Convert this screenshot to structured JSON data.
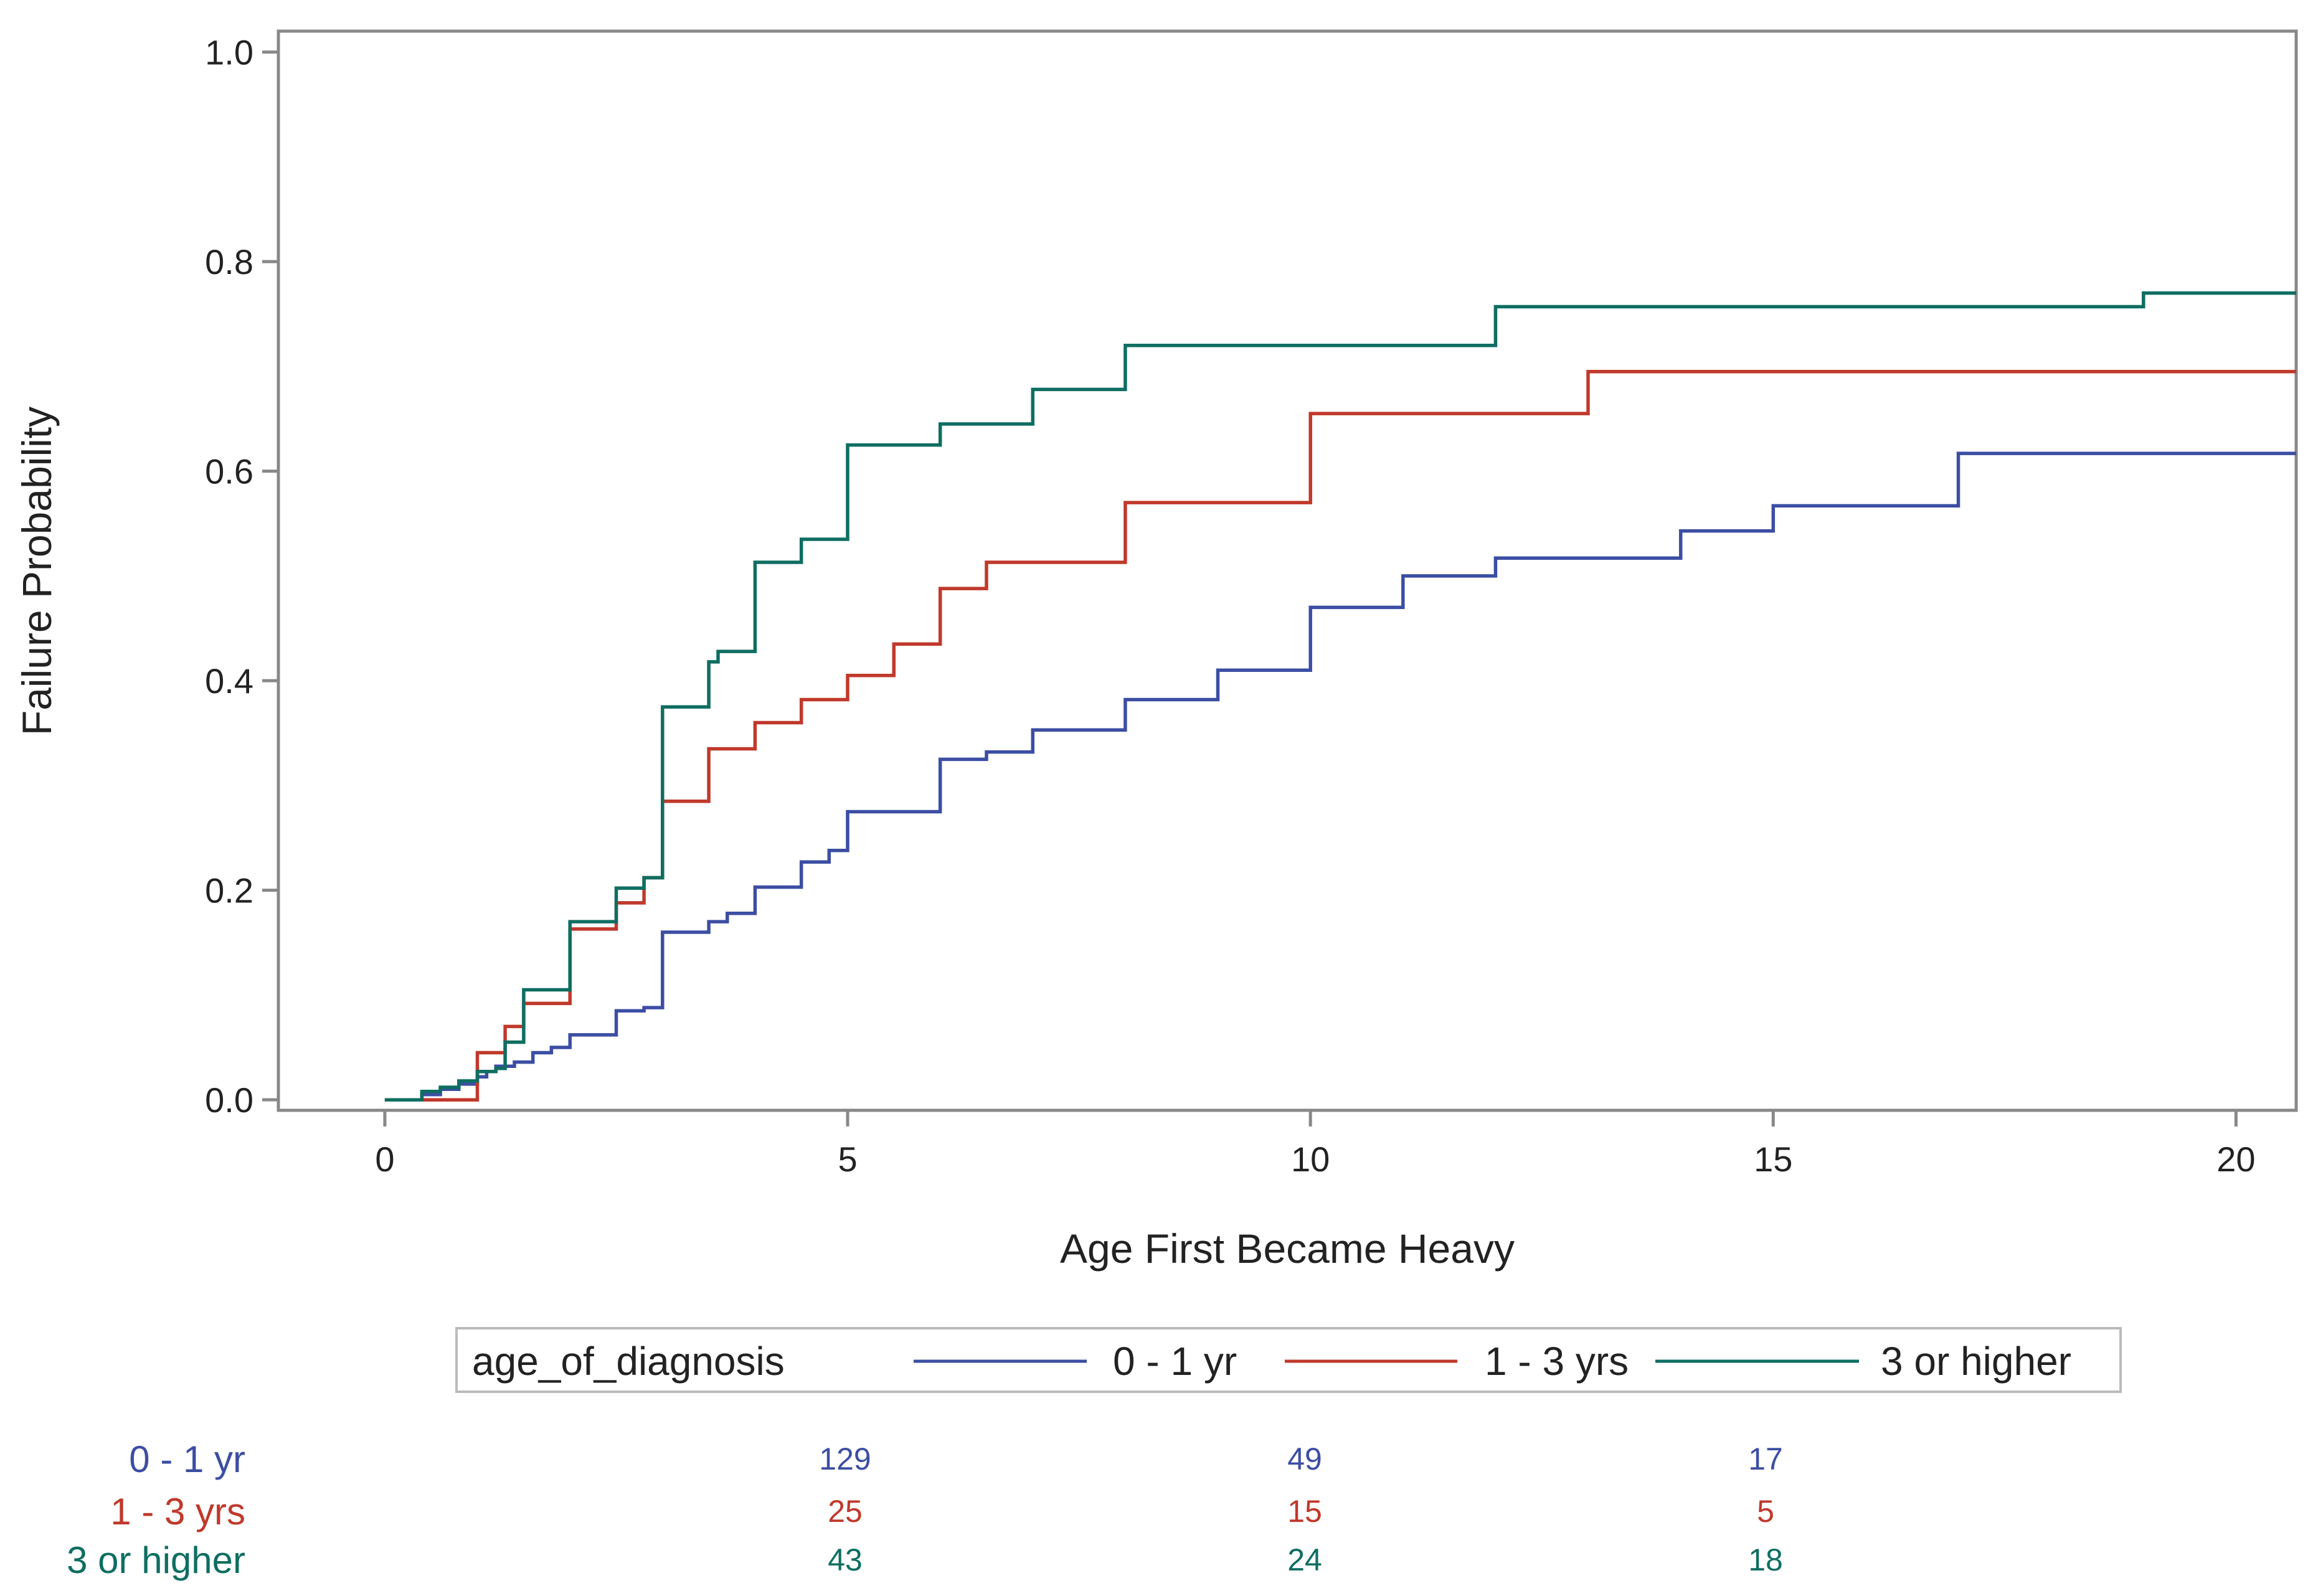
{
  "chart_data": {
    "type": "line",
    "title": "",
    "xlabel": "Age First Became Heavy",
    "ylabel": "Failure Probability",
    "xlim": [
      -1.15,
      20.65
    ],
    "ylim": [
      -0.01,
      1.02
    ],
    "xticks": [
      0,
      5,
      10,
      15,
      20
    ],
    "yticks": [
      0.0,
      0.2,
      0.4,
      0.6,
      0.8,
      1.0
    ],
    "xtick_labels": [
      "0",
      "5",
      "10",
      "15",
      "20"
    ],
    "ytick_labels": [
      "0.0",
      "0.2",
      "0.4",
      "0.6",
      "0.8",
      "1.0"
    ],
    "legend": {
      "title": "age_of_diagnosis",
      "placement": "bottom",
      "entries": [
        "0 - 1 yr",
        "1 - 3 yrs",
        "3 or higher"
      ]
    },
    "series": [
      {
        "name": "0 - 1 yr",
        "color": "#3c4ea3",
        "x": [
          0,
          0.4,
          0.6,
          0.8,
          1.0,
          1.1,
          1.2,
          1.4,
          1.6,
          1.8,
          2.0,
          2.5,
          2.8,
          3.0,
          3.5,
          3.7,
          4.0,
          4.5,
          4.8,
          5.0,
          6.0,
          6.5,
          7.0,
          8.0,
          9.0,
          10.0,
          11.0,
          12.0,
          14.0,
          14.5,
          15.0,
          17.0,
          20.65
        ],
        "y": [
          0.0,
          0.005,
          0.01,
          0.015,
          0.022,
          0.027,
          0.032,
          0.036,
          0.045,
          0.05,
          0.062,
          0.085,
          0.088,
          0.16,
          0.17,
          0.178,
          0.203,
          0.227,
          0.238,
          0.275,
          0.325,
          0.332,
          0.353,
          0.382,
          0.41,
          0.47,
          0.5,
          0.517,
          0.543,
          0.543,
          0.567,
          0.617,
          0.617
        ]
      },
      {
        "name": "1 - 3 yrs",
        "color": "#c0392b",
        "x": [
          0,
          0.4,
          1.0,
          1.3,
          1.5,
          2.0,
          2.5,
          2.8,
          3.0,
          3.5,
          4.0,
          4.5,
          5.0,
          5.5,
          6.0,
          6.5,
          8.0,
          10.0,
          13.0,
          20.65
        ],
        "y": [
          0.0,
          0.0,
          0.045,
          0.07,
          0.092,
          0.163,
          0.188,
          0.212,
          0.285,
          0.335,
          0.36,
          0.382,
          0.405,
          0.435,
          0.488,
          0.513,
          0.57,
          0.655,
          0.695,
          0.695
        ]
      },
      {
        "name": "3 or higher",
        "color": "#0e6e61",
        "x": [
          0,
          0.4,
          0.6,
          0.8,
          1.0,
          1.2,
          1.3,
          1.5,
          2.0,
          2.5,
          2.8,
          3.0,
          3.5,
          3.6,
          4.0,
          4.5,
          5.0,
          6.0,
          7.0,
          8.0,
          12.0,
          19.0,
          20.65
        ],
        "y": [
          0.0,
          0.008,
          0.012,
          0.018,
          0.027,
          0.03,
          0.055,
          0.105,
          0.17,
          0.202,
          0.212,
          0.375,
          0.418,
          0.428,
          0.513,
          0.535,
          0.625,
          0.645,
          0.678,
          0.72,
          0.757,
          0.77,
          0.77
        ]
      }
    ],
    "risk_table": {
      "x": [
        5,
        10,
        15
      ],
      "rows": [
        {
          "label": "0 - 1 yr",
          "color": "#3c4ea3",
          "values": [
            "129",
            "49",
            "17"
          ]
        },
        {
          "label": "1 - 3 yrs",
          "color": "#c0392b",
          "values": [
            "25",
            "15",
            "5"
          ]
        },
        {
          "label": "3 or higher",
          "color": "#0e6e61",
          "values": [
            "43",
            "24",
            "18"
          ]
        }
      ]
    }
  }
}
